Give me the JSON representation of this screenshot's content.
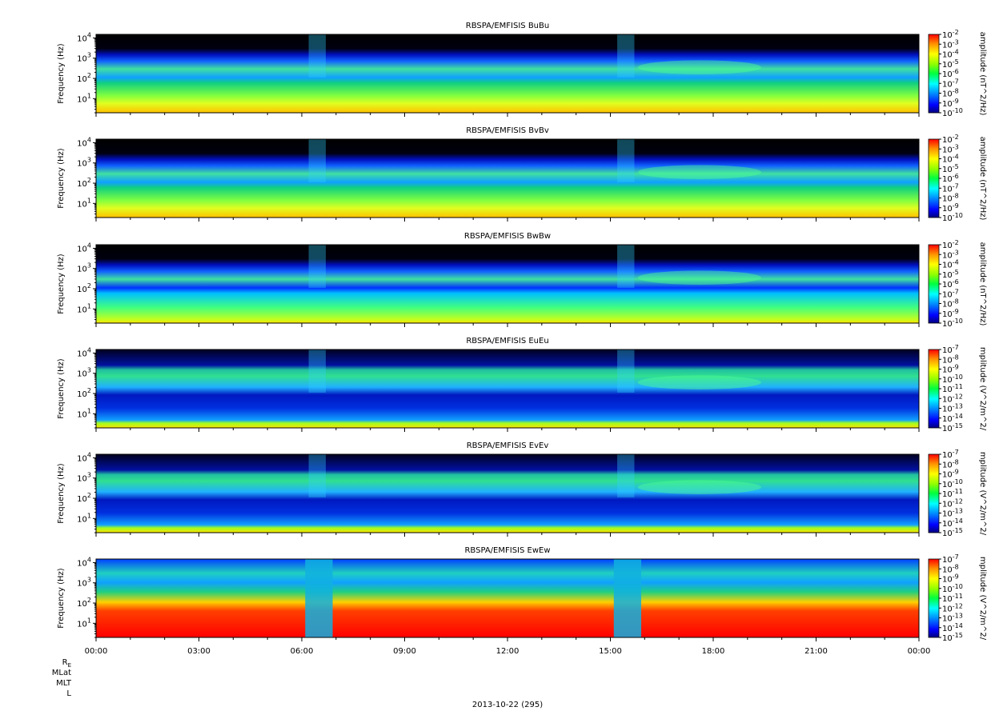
{
  "chart_data": {
    "type": "heatmap",
    "date_label": "2013-10-22 (295)",
    "x_tick_labels": [
      "00:00",
      "03:00",
      "06:00",
      "09:00",
      "12:00",
      "15:00",
      "18:00",
      "21:00",
      "00:00"
    ],
    "xlim_hours": [
      0,
      24
    ],
    "ephemeris_labels": [
      "R",
      "MLat",
      "MLT",
      "L"
    ],
    "ephemeris_subscript": "E",
    "y_scale": "log",
    "ylim_hz": [
      2,
      15000
    ],
    "y_tick_labels": [
      {
        "base": "10",
        "exp": "4"
      },
      {
        "base": "10",
        "exp": "3"
      },
      {
        "base": "10",
        "exp": "2"
      },
      {
        "base": "10",
        "exp": "1"
      }
    ],
    "colorscale": [
      "#000080",
      "#0000ff",
      "#0080ff",
      "#00ffff",
      "#00ff80",
      "#80ff00",
      "#ffff00",
      "#ff8000",
      "#ff0000"
    ],
    "panels": [
      {
        "title": "RBSPA/EMFISIS  BuBu",
        "ylabel": "Frequency (Hz)",
        "cbar_label": "amplitude (nT^2/Hz)",
        "cbar_exps": [
          "-2",
          "-3",
          "-4",
          "-5",
          "-6",
          "-7",
          "-8",
          "-9",
          "-10"
        ],
        "kind": "B"
      },
      {
        "title": "RBSPA/EMFISIS  BvBv",
        "ylabel": "Frequency (Hz)",
        "cbar_label": "amplitude (nT^2/Hz)",
        "cbar_exps": [
          "-2",
          "-3",
          "-4",
          "-5",
          "-6",
          "-7",
          "-8",
          "-9",
          "-10"
        ],
        "kind": "B"
      },
      {
        "title": "RBSPA/EMFISIS  BwBw",
        "ylabel": "Frequency (Hz)",
        "cbar_label": "amplitude (nT^2/Hz)",
        "cbar_exps": [
          "-2",
          "-3",
          "-4",
          "-5",
          "-6",
          "-7",
          "-8",
          "-9",
          "-10"
        ],
        "kind": "Bw"
      },
      {
        "title": "RBSPA/EMFISIS  EuEu",
        "ylabel": "Frequency (Hz)",
        "cbar_label": "mplitude (V^2/m^2/",
        "cbar_exps": [
          "-7",
          "-8",
          "-9",
          "-10",
          "-11",
          "-12",
          "-13",
          "-14",
          "-15"
        ],
        "kind": "E"
      },
      {
        "title": "RBSPA/EMFISIS  EvEv",
        "ylabel": "Frequency (Hz)",
        "cbar_label": "mplitude (V^2/m^2/",
        "cbar_exps": [
          "-7",
          "-8",
          "-9",
          "-10",
          "-11",
          "-12",
          "-13",
          "-14",
          "-15"
        ],
        "kind": "E"
      },
      {
        "title": "RBSPA/EMFISIS  EwEw",
        "ylabel": "Frequency (Hz)",
        "cbar_label": "mplitude (V^2/m^2/",
        "cbar_exps": [
          "-7",
          "-8",
          "-9",
          "-10",
          "-11",
          "-12",
          "-13",
          "-14",
          "-15"
        ],
        "kind": "Ew"
      }
    ]
  }
}
